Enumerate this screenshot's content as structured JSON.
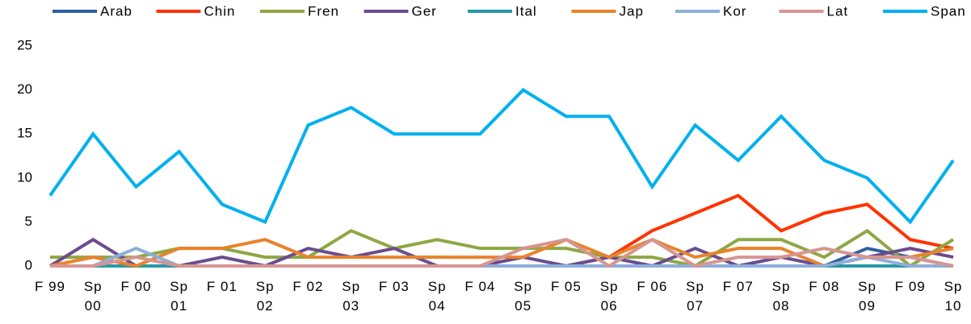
{
  "chart_data": {
    "type": "line",
    "categories": [
      "F 99",
      "Sp\n00",
      "F 00",
      "Sp\n01",
      "F 01",
      "Sp\n02",
      "F 02",
      "Sp\n03",
      "F 03",
      "Sp\n04",
      "F 04",
      "Sp\n05",
      "F 05",
      "Sp\n06",
      "F 06",
      "Sp\n07",
      "F 07",
      "Sp\n08",
      "F 08",
      "Sp\n09",
      "F 09",
      "Sp\n10"
    ],
    "series": [
      {
        "name": "Arab",
        "color": "#2f5f9e",
        "values": [
          0,
          0,
          0,
          0,
          0,
          0,
          0,
          0,
          0,
          0,
          0,
          0,
          0,
          0,
          0,
          0,
          0,
          0,
          0,
          2,
          1,
          0
        ]
      },
      {
        "name": "Chin",
        "color": "#ff3300",
        "values": [
          0,
          0,
          0,
          0,
          0,
          0,
          0,
          0,
          0,
          0,
          0,
          0,
          0,
          1,
          4,
          6,
          8,
          4,
          6,
          7,
          3,
          2
        ]
      },
      {
        "name": "Fren",
        "color": "#8ea743",
        "values": [
          1,
          1,
          1,
          2,
          2,
          1,
          1,
          4,
          2,
          3,
          2,
          2,
          2,
          1,
          1,
          0,
          3,
          3,
          1,
          4,
          0,
          3
        ]
      },
      {
        "name": "Ger",
        "color": "#6b4c8e",
        "values": [
          0,
          3,
          0,
          0,
          1,
          0,
          2,
          1,
          2,
          0,
          0,
          1,
          0,
          1,
          0,
          2,
          0,
          1,
          0,
          1,
          2,
          1
        ]
      },
      {
        "name": "Ital",
        "color": "#2799a6",
        "values": [
          0,
          0,
          0,
          0,
          0,
          0,
          0,
          0,
          0,
          0,
          0,
          0,
          0,
          0,
          0,
          0,
          0,
          0,
          0,
          0,
          0,
          0
        ]
      },
      {
        "name": "Jap",
        "color": "#e8832c",
        "values": [
          0,
          1,
          0,
          2,
          2,
          3,
          1,
          1,
          1,
          1,
          1,
          1,
          3,
          1,
          3,
          1,
          2,
          2,
          0,
          1,
          1,
          2
        ]
      },
      {
        "name": "Kor",
        "color": "#8eaedb",
        "values": [
          0,
          0,
          2,
          0,
          0,
          0,
          0,
          0,
          0,
          0,
          0,
          0,
          0,
          0,
          0,
          0,
          0,
          0,
          0,
          1,
          0,
          0
        ]
      },
      {
        "name": "Lat",
        "color": "#d79592",
        "values": [
          0,
          0,
          1,
          0,
          0,
          0,
          0,
          0,
          0,
          0,
          0,
          2,
          3,
          0,
          3,
          0,
          1,
          1,
          2,
          1,
          1,
          0
        ]
      },
      {
        "name": "Span",
        "color": "#00b0f0",
        "values": [
          8,
          15,
          9,
          13,
          7,
          5,
          16,
          18,
          15,
          15,
          15,
          20,
          17,
          17,
          9,
          16,
          12,
          17,
          12,
          10,
          5,
          12
        ]
      }
    ],
    "ylim": [
      0,
      25
    ],
    "yticks": [
      0,
      5,
      10,
      15,
      20,
      25
    ],
    "legend": "top"
  }
}
